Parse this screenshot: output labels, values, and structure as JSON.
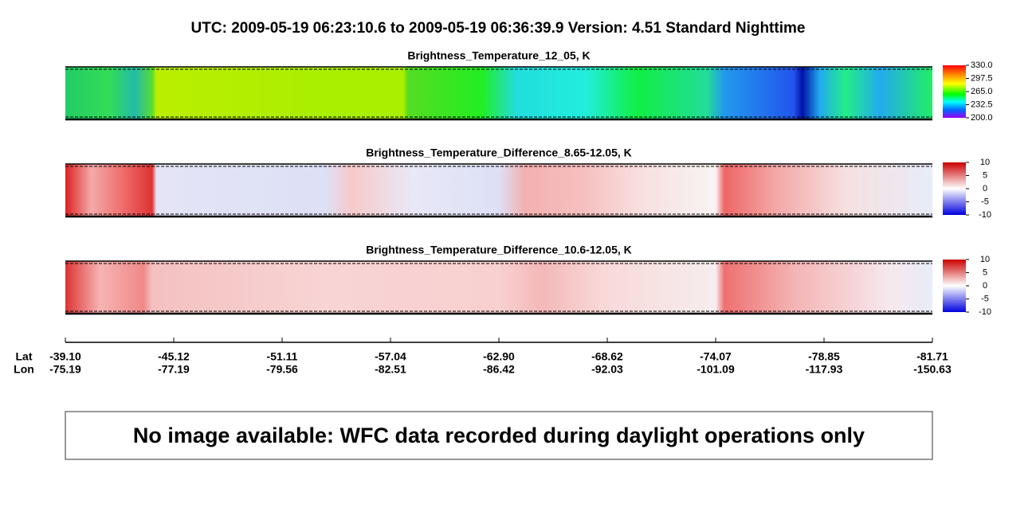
{
  "title": "UTC:  2009-05-19   06:23:10.6  to  2009-05-19   06:36:39.9    Version: 4.51  Standard Nighttime",
  "panels": [
    {
      "title": "Brightness_Temperature_12_05, K",
      "colorbar": {
        "lim": [
          200,
          330
        ],
        "ticks": [
          {
            "value": 330,
            "label": "330.0"
          },
          {
            "value": 297.5,
            "label": "297.5"
          },
          {
            "value": 265,
            "label": "265.0"
          },
          {
            "value": 232.5,
            "label": "232.5"
          },
          {
            "value": 200,
            "label": "200.0"
          }
        ]
      }
    },
    {
      "title": "Brightness_Temperature_Difference_8.65-12.05, K",
      "colorbar": {
        "lim": [
          -10,
          10
        ],
        "ticks": [
          10,
          5,
          0,
          -5,
          -10
        ]
      }
    },
    {
      "title": "Brightness_Temperature_Difference_10.6-12.05, K",
      "colorbar": {
        "lim": [
          -10,
          10
        ],
        "ticks": [
          10,
          5,
          0,
          -5,
          -10
        ]
      }
    }
  ],
  "axis": {
    "lat_label": "Lat",
    "lon_label": "Lon",
    "ticks": [
      {
        "lat": "-39.10",
        "lon": "-75.19"
      },
      {
        "lat": "-45.12",
        "lon": "-77.19"
      },
      {
        "lat": "-51.11",
        "lon": "-79.56"
      },
      {
        "lat": "-57.04",
        "lon": "-82.51"
      },
      {
        "lat": "-62.90",
        "lon": "-86.42"
      },
      {
        "lat": "-68.62",
        "lon": "-92.03"
      },
      {
        "lat": "-74.07",
        "lon": "-101.09"
      },
      {
        "lat": "-78.85",
        "lon": "-117.93"
      },
      {
        "lat": "-81.71",
        "lon": "-150.63"
      }
    ]
  },
  "message": "No image available: WFC data recorded during daylight operations only"
}
